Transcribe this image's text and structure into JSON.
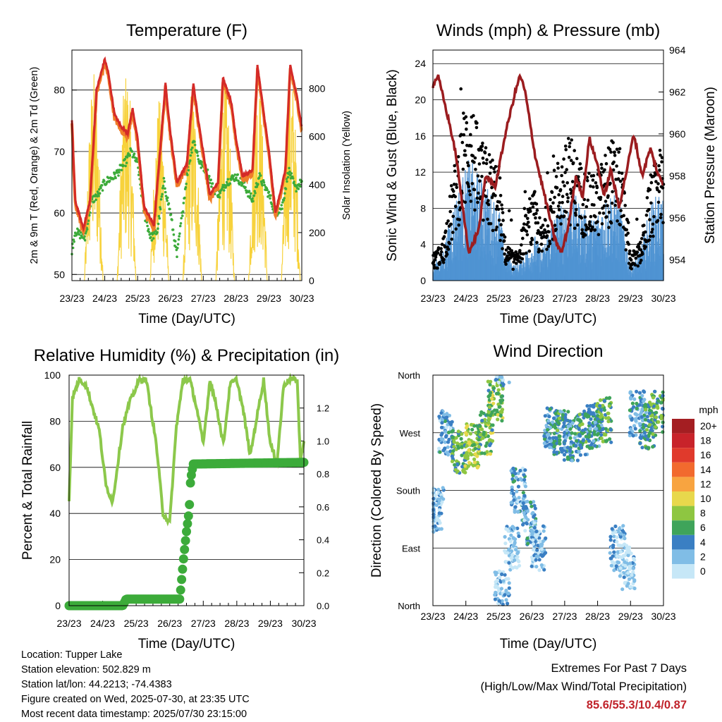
{
  "chart_data": [
    {
      "type": "line",
      "title": "Temperature (F)",
      "xlabel": "Time (Day/UTC)",
      "ylabel": "2m & 9m T (Red, Orange) & 2m Td (Green)",
      "y2label": "Solar Insolation (Yellow)",
      "x_ticks": [
        "23/23",
        "24/23",
        "25/23",
        "26/23",
        "27/23",
        "28/23",
        "29/23",
        "30/23"
      ],
      "ylim": [
        49,
        86.5
      ],
      "y_ticks": [
        50,
        60,
        70,
        80
      ],
      "y2lim": [
        0,
        960
      ],
      "y2_ticks": [
        0,
        200,
        400,
        600,
        800
      ],
      "grid": true,
      "colors": {
        "t2m": "#d42a28",
        "t9m": "#f07d2a",
        "td": "#3cab3a",
        "solar": "#f7d23c"
      },
      "series": [
        {
          "key": "t2m",
          "x": [
            0,
            0.1,
            0.35,
            0.55,
            0.75,
            1.0,
            1.1,
            1.3,
            1.5,
            1.7,
            1.85,
            2.0,
            2.2,
            2.5,
            2.65,
            2.85,
            3.0,
            3.2,
            3.5,
            3.7,
            3.85,
            4.0,
            4.2,
            4.45,
            4.6,
            4.85,
            5.0,
            5.2,
            5.5,
            5.65,
            5.85,
            6.0,
            6.2,
            6.5,
            6.65,
            6.85,
            7.0
          ],
          "values": [
            75,
            62,
            57.5,
            62,
            80,
            85,
            83,
            76,
            74,
            73,
            77,
            72,
            61,
            58,
            68,
            81,
            73,
            65,
            68,
            81,
            75,
            70,
            63,
            65,
            82,
            78,
            72,
            66,
            67,
            84,
            76,
            70,
            60,
            67,
            84,
            79,
            74
          ]
        },
        {
          "key": "td",
          "x": [
            0,
            0.1,
            0.4,
            0.6,
            0.8,
            1.0,
            1.3,
            1.6,
            1.8,
            2.0,
            2.2,
            2.4,
            2.6,
            2.8,
            3.0,
            3.2,
            3.5,
            3.7,
            3.9,
            4.1,
            4.3,
            4.5,
            4.7,
            5.0,
            5.3,
            5.5,
            5.7,
            6.0,
            6.2,
            6.4,
            6.6,
            6.8,
            7.0
          ],
          "values": [
            54,
            57,
            56,
            62,
            63,
            65,
            66,
            68,
            70,
            68,
            60,
            56,
            57,
            65,
            60,
            53,
            66,
            72,
            68,
            67,
            64,
            63,
            65,
            66,
            64,
            62,
            66,
            63,
            60,
            61,
            67,
            64,
            65
          ]
        },
        {
          "key": "solar",
          "days": [
            0,
            1,
            2,
            3,
            4,
            5,
            6
          ],
          "peaks": [
            880,
            900,
            760,
            820,
            840,
            860,
            900
          ]
        }
      ]
    },
    {
      "type": "scatter",
      "title": "Winds (mph) & Pressure (mb)",
      "xlabel": "Time (Day/UTC)",
      "ylabel": "Sonic Wind & Gust (Blue, Black)",
      "y2label": "Station Pressure (Maroon)",
      "x_ticks": [
        "23/23",
        "24/23",
        "25/23",
        "26/23",
        "27/23",
        "28/23",
        "29/23",
        "30/23"
      ],
      "ylim": [
        0,
        25.5
      ],
      "y_ticks": [
        0,
        4,
        8,
        12,
        16,
        20,
        24
      ],
      "y2lim": [
        953,
        964
      ],
      "y2_ticks": [
        954,
        956,
        958,
        960,
        962,
        964
      ],
      "grid": true,
      "colors": {
        "wind": "#4f93d2",
        "gust": "#000000",
        "pressure": "#9b1c1f"
      },
      "series": [
        {
          "key": "wind_mean",
          "x": [
            0,
            0.3,
            0.6,
            0.9,
            1.1,
            1.4,
            1.7,
            2.0,
            2.2,
            2.5,
            2.8,
            3.1,
            3.3,
            3.6,
            3.9,
            4.2,
            4.5,
            4.8,
            5.1,
            5.4,
            5.7,
            6.0,
            6.3,
            6.6,
            6.9,
            7.0
          ],
          "values": [
            1,
            2,
            5,
            7,
            8,
            7,
            6,
            5,
            2,
            1,
            2,
            3,
            2,
            4,
            5,
            6,
            5,
            4,
            5,
            6,
            5,
            1,
            2,
            5,
            6,
            5
          ]
        },
        {
          "key": "gust_mean",
          "x": [
            0,
            0.3,
            0.6,
            0.9,
            1.1,
            1.4,
            1.7,
            2.0,
            2.2,
            2.5,
            2.8,
            3.1,
            3.3,
            3.6,
            3.9,
            4.2,
            4.5,
            4.8,
            5.1,
            5.4,
            5.7,
            6.0,
            6.3,
            6.6,
            6.9,
            7.0
          ],
          "values": [
            2,
            3,
            8,
            13,
            15,
            11,
            10,
            9,
            3,
            2,
            5,
            7,
            4,
            8,
            10,
            11,
            9,
            8,
            9,
            11,
            10,
            2,
            3,
            8,
            10,
            9
          ]
        },
        {
          "key": "pressure",
          "x": [
            0,
            0.15,
            0.5,
            0.7,
            0.9,
            1.1,
            1.4,
            1.6,
            1.9,
            2.2,
            2.5,
            2.65,
            2.8,
            3.1,
            3.4,
            3.7,
            3.9,
            4.1,
            4.35,
            4.55,
            4.75,
            5.0,
            5.2,
            5.4,
            5.65,
            5.85,
            6.1,
            6.35,
            6.6,
            6.85,
            7.0
          ],
          "values": [
            962.3,
            962.8,
            960.5,
            959.0,
            956.5,
            954.3,
            955.5,
            958.0,
            957.5,
            960.0,
            962.0,
            962.8,
            962.0,
            959.0,
            957.0,
            955.0,
            954.3,
            955.5,
            958.0,
            957.0,
            959.8,
            958.5,
            957.0,
            958.3,
            956.5,
            958.0,
            960.0,
            958.0,
            959.3,
            958.0,
            957.6
          ]
        }
      ]
    },
    {
      "type": "line",
      "title": "Relative Humidity (%) & Precipitation (in)",
      "xlabel": "Time (Day/UTC)",
      "ylabel": "Percent & Total Rainfall",
      "x_ticks": [
        "23/23",
        "24/23",
        "25/23",
        "26/23",
        "27/23",
        "28/23",
        "29/23",
        "30/23"
      ],
      "ylim": [
        0,
        100
      ],
      "y_ticks": [
        0,
        20,
        40,
        60,
        80,
        100
      ],
      "y2lim": [
        0,
        1.4
      ],
      "y2_ticks": [
        0.0,
        0.2,
        0.4,
        0.6,
        0.8,
        1.0,
        1.2
      ],
      "grid": true,
      "colors": {
        "rh": "#8cc84b",
        "precip": "#3cab3a"
      },
      "series": [
        {
          "key": "rh",
          "x": [
            0,
            0.1,
            0.3,
            0.5,
            0.9,
            1.1,
            1.3,
            1.6,
            1.8,
            2.1,
            2.3,
            2.6,
            2.8,
            3.0,
            3.2,
            3.4,
            3.6,
            3.8,
            4.0,
            4.2,
            4.4,
            4.6,
            4.8,
            5.0,
            5.2,
            5.4,
            5.6,
            5.8,
            6.0,
            6.2,
            6.4,
            6.6,
            6.8,
            6.9,
            7.0
          ],
          "values": [
            46,
            90,
            98,
            96,
            76,
            52,
            45,
            78,
            88,
            98,
            98,
            70,
            40,
            36,
            78,
            98,
            98,
            86,
            70,
            98,
            86,
            70,
            96,
            98,
            84,
            65,
            82,
            98,
            70,
            62,
            96,
            98,
            98,
            62,
            72
          ]
        },
        {
          "key": "precip",
          "x": [
            0,
            1.6,
            1.7,
            3.3,
            3.35,
            3.42,
            3.5,
            3.58,
            3.62,
            3.7,
            7.0
          ],
          "values": [
            0.0,
            0.0,
            0.04,
            0.04,
            0.15,
            0.3,
            0.45,
            0.58,
            0.76,
            0.86,
            0.87
          ]
        }
      ]
    },
    {
      "type": "scatter",
      "title": "Wind Direction",
      "xlabel": "Time (Day/UTC)",
      "ylabel": "Direction (Colored By Speed)",
      "x_ticks": [
        "23/23",
        "24/23",
        "25/23",
        "26/23",
        "27/23",
        "28/23",
        "29/23",
        "30/23"
      ],
      "y_ticks": [
        "North",
        "East",
        "South",
        "West",
        "North"
      ],
      "ylim": [
        0,
        360
      ],
      "grid": true,
      "legend": {
        "title": "mph",
        "placement": "right",
        "labels": [
          "20+",
          "18",
          "16",
          "14",
          "12",
          "10",
          "8",
          "6",
          "4",
          "2",
          "0"
        ],
        "colors": [
          "#a41e22",
          "#c8232a",
          "#e03a2c",
          "#f26a2e",
          "#f8a440",
          "#e8d84c",
          "#8ec641",
          "#3fa45a",
          "#3a7fc3",
          "#80bde6",
          "#c6e7f7"
        ]
      },
      "series": [
        {
          "key": "direction_centers",
          "x": [
            0.1,
            0.4,
            0.8,
            1.2,
            1.6,
            1.9,
            2.1,
            2.4,
            2.6,
            2.9,
            3.2,
            3.6,
            3.9,
            4.2,
            4.6,
            4.9,
            5.2,
            5.6,
            5.9,
            6.2,
            6.5,
            6.8
          ],
          "values": [
            150,
            270,
            240,
            250,
            270,
            320,
            20,
            90,
            180,
            130,
            90,
            280,
            270,
            260,
            270,
            280,
            290,
            90,
            60,
            300,
            280,
            300
          ],
          "speeds": [
            2,
            3,
            6,
            8,
            7,
            7,
            2,
            1,
            3,
            3,
            2,
            4,
            5,
            4,
            5,
            4,
            6,
            2,
            1,
            3,
            5,
            6
          ]
        }
      ]
    }
  ],
  "footer": {
    "location": "Location: Tupper Lake",
    "elevation": "Station elevation: 502.829 m",
    "latlon": "Station lat/lon: 44.2213; -74.4383",
    "created": "Figure created on Wed, 2025-07-30, at 23:35 UTC",
    "recent": "Most recent data timestamp: 2025/07/30 23:15:00"
  },
  "extremes": {
    "title": "Extremes For Past 7 Days",
    "subtitle": "(High/Low/Max Wind/Total Precipitation)",
    "values": "85.6/55.3/10.4/0.87"
  }
}
